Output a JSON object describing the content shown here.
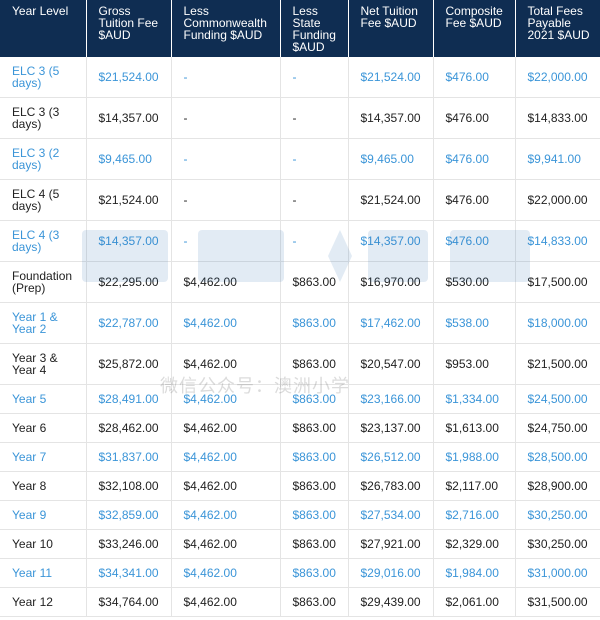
{
  "colors": {
    "header_bg": "#0f2d52",
    "accent_blue": "#3b95d8",
    "text_dark": "#222222"
  },
  "table": {
    "headers": [
      "Year Level",
      "Gross Tuition Fee $AUD",
      "Less Commonwealth Funding $AUD",
      "Less State Funding $AUD",
      "Net Tuition Fee $AUD",
      "Composite Fee $AUD",
      "Total Fees Payable 2021 $AUD"
    ],
    "rows": [
      [
        "ELC 3 (5 days)",
        "$21,524.00",
        "-",
        "-",
        "$21,524.00",
        "$476.00",
        "$22,000.00"
      ],
      [
        "ELC 3 (3 days)",
        "$14,357.00",
        "-",
        "-",
        "$14,357.00",
        "$476.00",
        "$14,833.00"
      ],
      [
        "ELC 3 (2 days)",
        "$9,465.00",
        "-",
        "-",
        "$9,465.00",
        "$476.00",
        "$9,941.00"
      ],
      [
        "ELC 4 (5 days)",
        "$21,524.00",
        "-",
        "-",
        "$21,524.00",
        "$476.00",
        "$22,000.00"
      ],
      [
        "ELC 4 (3 days)",
        "$14,357.00",
        "-",
        "-",
        "$14,357.00",
        "$476.00",
        "$14,833.00"
      ],
      [
        "Foundation (Prep)",
        "$22,295.00",
        "$4,462.00",
        "$863.00",
        "$16,970.00",
        "$530.00",
        "$17,500.00"
      ],
      [
        "Year 1 & Year 2",
        "$22,787.00",
        "$4,462.00",
        "$863.00",
        "$17,462.00",
        "$538.00",
        "$18,000.00"
      ],
      [
        "Year 3 & Year 4",
        "$25,872.00",
        "$4,462.00",
        "$863.00",
        "$20,547.00",
        "$953.00",
        "$21,500.00"
      ],
      [
        "Year 5",
        "$28,491.00",
        "$4,462.00",
        "$863.00",
        "$23,166.00",
        "$1,334.00",
        "$24,500.00"
      ],
      [
        "Year 6",
        "$28,462.00",
        "$4,462.00",
        "$863.00",
        "$23,137.00",
        "$1,613.00",
        "$24,750.00"
      ],
      [
        "Year 7",
        "$31,837.00",
        "$4,462.00",
        "$863.00",
        "$26,512.00",
        "$1,988.00",
        "$28,500.00"
      ],
      [
        "Year 8",
        "$32,108.00",
        "$4,462.00",
        "$863.00",
        "$26,783.00",
        "$2,117.00",
        "$28,900.00"
      ],
      [
        "Year 9",
        "$32,859.00",
        "$4,462.00",
        "$863.00",
        "$27,534.00",
        "$2,716.00",
        "$30,250.00"
      ],
      [
        "Year 10",
        "$33,246.00",
        "$4,462.00",
        "$863.00",
        "$27,921.00",
        "$2,329.00",
        "$30,250.00"
      ],
      [
        "Year 11",
        "$34,341.00",
        "$4,462.00",
        "$863.00",
        "$29,016.00",
        "$1,984.00",
        "$31,000.00"
      ],
      [
        "Year 12",
        "$34,764.00",
        "$4,462.00",
        "$863.00",
        "$29,439.00",
        "$2,061.00",
        "$31,500.00"
      ]
    ]
  },
  "watermark": {
    "logo_text": "澳洲小学",
    "caption": "微信公众号：澳洲小学"
  }
}
